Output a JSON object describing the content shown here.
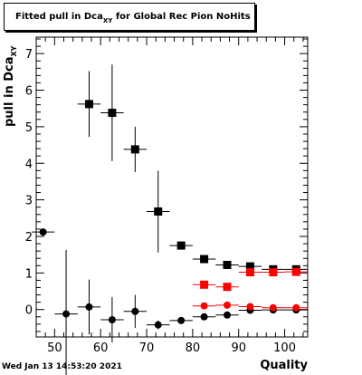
{
  "header": {
    "title_main": "Fitted pull in Dca",
    "title_sub": "XY",
    "title_rest": " for Global Rec Pion NoHits"
  },
  "footer": {
    "timestamp": "Wed Jan 13 14:53:20 2021"
  },
  "axes": {
    "xlabel": "Quality",
    "ylabel_main": "pull in Dca",
    "ylabel_sub": "XY"
  },
  "colors": {
    "black_series": "#000000",
    "red_series": "#ff0000",
    "frame": "#000000"
  },
  "chart_data": {
    "type": "scatter",
    "xlim": [
      46,
      105
    ],
    "ylim": [
      -0.75,
      7.45
    ],
    "xticks": [
      50,
      60,
      70,
      80,
      90,
      100
    ],
    "yticks": [
      0,
      1,
      2,
      3,
      4,
      5,
      6,
      7
    ],
    "xlabel": "Quality",
    "ylabel": "pull in Dca_XY",
    "title": "Fitted pull in Dca_XY for Global Rec Pion NoHits",
    "series": [
      {
        "marker": "square",
        "color": "#000000",
        "points": [
          {
            "x": 57.5,
            "y": 5.62,
            "yerr": 0.9,
            "xerr": 2.5
          },
          {
            "x": 62.5,
            "y": 5.38,
            "yerr": 1.32,
            "xerr": 2.5
          },
          {
            "x": 67.5,
            "y": 4.38,
            "yerr": 0.62,
            "xerr": 2.5
          },
          {
            "x": 72.5,
            "y": 2.68,
            "yerr": 1.12,
            "xerr": 2.5
          },
          {
            "x": 77.5,
            "y": 1.75,
            "yerr": 0.1,
            "xerr": 2.5
          },
          {
            "x": 82.5,
            "y": 1.38,
            "yerr": 0.05,
            "xerr": 2.5
          },
          {
            "x": 87.5,
            "y": 1.22,
            "yerr": 0.04,
            "xerr": 2.5
          },
          {
            "x": 92.5,
            "y": 1.18,
            "yerr": 0.03,
            "xerr": 2.5
          },
          {
            "x": 97.5,
            "y": 1.1,
            "yerr": 0.03,
            "xerr": 2.5
          },
          {
            "x": 102.5,
            "y": 1.1,
            "yerr": 0.03,
            "xerr": 2.5
          }
        ]
      },
      {
        "marker": "circle",
        "color": "#000000",
        "points": [
          {
            "x": 47.5,
            "y": 2.12,
            "yerr": 0.0,
            "xerr": 2.5
          },
          {
            "x": 52.5,
            "y": -0.12,
            "yerr": 1.75,
            "xerr": 2.5
          },
          {
            "x": 57.5,
            "y": 0.07,
            "yerr": 0.75,
            "xerr": 2.5
          },
          {
            "x": 62.5,
            "y": -0.28,
            "yerr": 0.62,
            "xerr": 2.5
          },
          {
            "x": 67.5,
            "y": -0.05,
            "yerr": 0.45,
            "xerr": 2.5
          },
          {
            "x": 72.5,
            "y": -0.42,
            "yerr": 0.12,
            "xerr": 2.5
          },
          {
            "x": 77.5,
            "y": -0.3,
            "yerr": 0.06,
            "xerr": 2.5
          },
          {
            "x": 82.5,
            "y": -0.2,
            "yerr": 0.04,
            "xerr": 2.5
          },
          {
            "x": 87.5,
            "y": -0.15,
            "yerr": 0.03,
            "xerr": 2.5
          },
          {
            "x": 92.5,
            "y": -0.02,
            "yerr": 0.03,
            "xerr": 2.5
          },
          {
            "x": 97.5,
            "y": -0.01,
            "yerr": 0.03,
            "xerr": 2.5
          },
          {
            "x": 102.5,
            "y": -0.01,
            "yerr": 0.03,
            "xerr": 2.5
          }
        ]
      },
      {
        "marker": "square",
        "color": "#ff0000",
        "points": [
          {
            "x": 82.5,
            "y": 0.68,
            "yerr": 0.05,
            "xerr": 2.5
          },
          {
            "x": 87.5,
            "y": 0.62,
            "yerr": 0.04,
            "xerr": 2.5
          },
          {
            "x": 92.5,
            "y": 1.02,
            "yerr": 0.03,
            "xerr": 2.5
          },
          {
            "x": 97.5,
            "y": 1.02,
            "yerr": 0.03,
            "xerr": 2.5
          },
          {
            "x": 102.5,
            "y": 1.03,
            "yerr": 0.03,
            "xerr": 2.5
          }
        ]
      },
      {
        "marker": "circle",
        "color": "#ff0000",
        "points": [
          {
            "x": 82.5,
            "y": 0.1,
            "yerr": 0.04,
            "xerr": 2.5
          },
          {
            "x": 87.5,
            "y": 0.12,
            "yerr": 0.03,
            "xerr": 2.5
          },
          {
            "x": 92.5,
            "y": 0.08,
            "yerr": 0.03,
            "xerr": 2.5
          },
          {
            "x": 97.5,
            "y": 0.05,
            "yerr": 0.03,
            "xerr": 2.5
          },
          {
            "x": 102.5,
            "y": 0.05,
            "yerr": 0.03,
            "xerr": 2.5
          }
        ]
      }
    ]
  }
}
